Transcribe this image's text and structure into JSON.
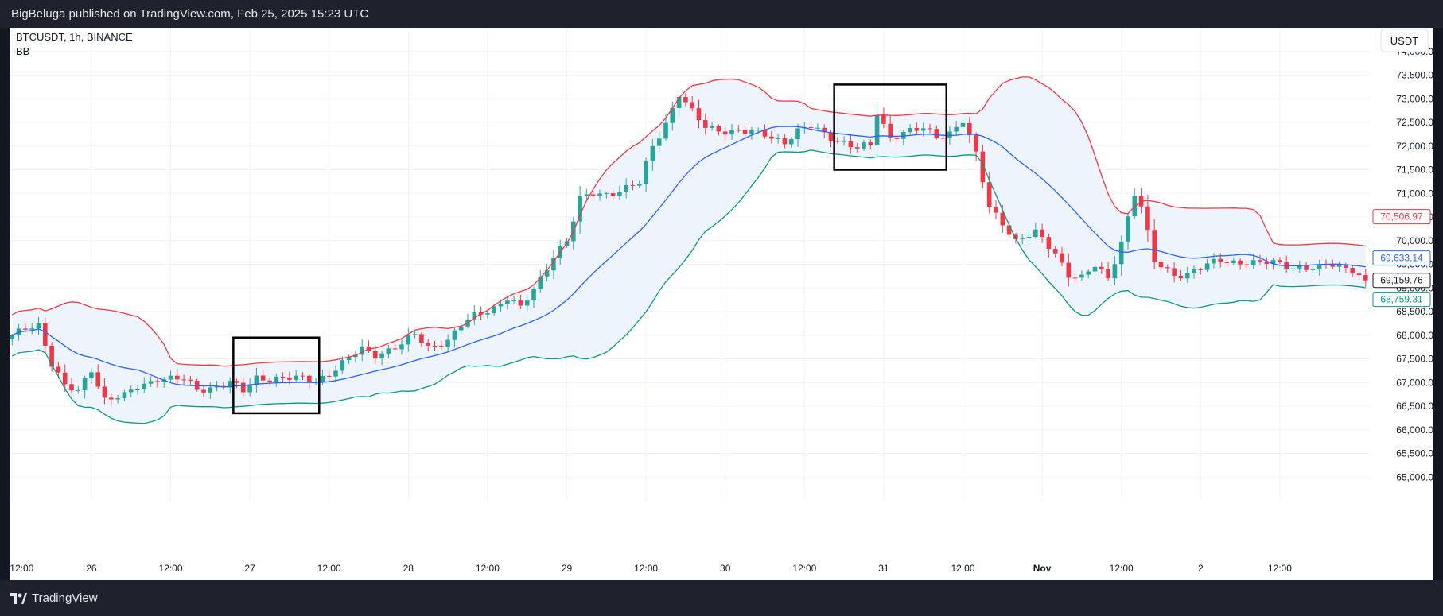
{
  "header": {
    "published": "BigBeluga published on TradingView.com, Feb 25, 2025 15:23 UTC"
  },
  "chart_header": {
    "symbol": "BTCUSDT, 1h, BINANCE",
    "indicator": "BB"
  },
  "footer": {
    "brand": "TradingView",
    "logo_icon": "tradingview-logo-icon"
  },
  "colors": {
    "up": "#26a69a",
    "down": "#f23645",
    "upper_band": "#f23645",
    "basis": "#2962ff",
    "lower_band": "#089981",
    "band_fill": "#eef4fb"
  },
  "chart_data": {
    "type": "candlestick",
    "currency": "USDT",
    "ylim": [
      64500,
      74500
    ],
    "y_ticks": [
      "74,000.00",
      "73,500.00",
      "73,000.00",
      "72,500.00",
      "72,000.00",
      "71,500.00",
      "71,000.00",
      "70,500.00",
      "70,000.00",
      "69,500.00",
      "69,000.00",
      "68,500.00",
      "68,000.00",
      "67,500.00",
      "67,000.00",
      "66,500.00",
      "66,000.00",
      "65,500.00",
      "65,000.00"
    ],
    "x_ticks": [
      {
        "index": 0,
        "label": "12:00"
      },
      {
        "index": 12,
        "label": "26"
      },
      {
        "index": 24,
        "label": "12:00"
      },
      {
        "index": 36,
        "label": "27"
      },
      {
        "index": 48,
        "label": "12:00"
      },
      {
        "index": 60,
        "label": "28"
      },
      {
        "index": 72,
        "label": "12:00"
      },
      {
        "index": 84,
        "label": "29"
      },
      {
        "index": 96,
        "label": "12:00"
      },
      {
        "index": 108,
        "label": "30"
      },
      {
        "index": 120,
        "label": "12:00"
      },
      {
        "index": 132,
        "label": "31"
      },
      {
        "index": 144,
        "label": "12:00"
      },
      {
        "index": 156,
        "label": "Nov"
      },
      {
        "index": 168,
        "label": "12:00"
      },
      {
        "index": 180,
        "label": "2"
      },
      {
        "index": 192,
        "label": "12:00"
      }
    ],
    "last_values": {
      "upper": {
        "label": "70,506.97",
        "value": 70506.97
      },
      "basis": {
        "label": "69,633.14",
        "value": 69633.14
      },
      "close": {
        "label": "69,159.76",
        "value": 69159.76
      },
      "lower": {
        "label": "68,759.31",
        "value": 68759.31
      }
    },
    "close_anchors": [
      [
        0,
        67950
      ],
      [
        2,
        68150
      ],
      [
        4,
        68250
      ],
      [
        6,
        67400
      ],
      [
        8,
        66900
      ],
      [
        10,
        66800
      ],
      [
        12,
        67300
      ],
      [
        14,
        66650
      ],
      [
        17,
        66700
      ],
      [
        19,
        66900
      ],
      [
        22,
        67100
      ],
      [
        26,
        67050
      ],
      [
        28,
        66850
      ],
      [
        30,
        66900
      ],
      [
        33,
        67000
      ],
      [
        35,
        66800
      ],
      [
        37,
        67100
      ],
      [
        40,
        67100
      ],
      [
        46,
        67050
      ],
      [
        48,
        67200
      ],
      [
        53,
        67700
      ],
      [
        55,
        67600
      ],
      [
        57,
        67700
      ],
      [
        59,
        67800
      ],
      [
        61,
        68000
      ],
      [
        63,
        67750
      ],
      [
        66,
        67900
      ],
      [
        68,
        68200
      ],
      [
        70,
        68400
      ],
      [
        73,
        68600
      ],
      [
        75,
        68800
      ],
      [
        77,
        68550
      ],
      [
        79,
        68950
      ],
      [
        82,
        69700
      ],
      [
        84,
        70000
      ],
      [
        86,
        70850
      ],
      [
        88,
        71000
      ],
      [
        90,
        71000
      ],
      [
        93,
        71100
      ],
      [
        95,
        71200
      ],
      [
        97,
        72000
      ],
      [
        99,
        72500
      ],
      [
        101,
        73100
      ],
      [
        103,
        72700
      ],
      [
        105,
        72400
      ],
      [
        110,
        72300
      ],
      [
        114,
        72250
      ],
      [
        117,
        72100
      ],
      [
        119,
        72300
      ],
      [
        121,
        72400
      ],
      [
        124,
        72200
      ],
      [
        128,
        71950
      ],
      [
        130,
        72000
      ],
      [
        131,
        72700
      ],
      [
        133,
        72200
      ],
      [
        135,
        72300
      ],
      [
        138,
        72350
      ],
      [
        140,
        72200
      ],
      [
        142,
        72300
      ],
      [
        144,
        72550
      ],
      [
        146,
        71800
      ],
      [
        148,
        70700
      ],
      [
        150,
        70400
      ],
      [
        152,
        70000
      ],
      [
        155,
        70150
      ],
      [
        158,
        69750
      ],
      [
        160,
        69300
      ],
      [
        162,
        69200
      ],
      [
        164,
        69450
      ],
      [
        166,
        69200
      ],
      [
        168,
        70000
      ],
      [
        170,
        71000
      ],
      [
        171,
        70700
      ],
      [
        173,
        69550
      ],
      [
        176,
        69300
      ],
      [
        178,
        69300
      ],
      [
        180,
        69400
      ],
      [
        183,
        69600
      ],
      [
        186,
        69550
      ],
      [
        189,
        69500
      ],
      [
        191,
        69550
      ],
      [
        193,
        69500
      ],
      [
        196,
        69400
      ],
      [
        198,
        69400
      ],
      [
        200,
        69500
      ],
      [
        203,
        69400
      ],
      [
        205,
        69160
      ]
    ],
    "marked_regions": [
      {
        "x0": 33.5,
        "x1": 46.5,
        "y0": 66350,
        "y1": 67950
      },
      {
        "x0": 124.5,
        "x1": 141.5,
        "y0": 71500,
        "y1": 73300
      }
    ]
  }
}
